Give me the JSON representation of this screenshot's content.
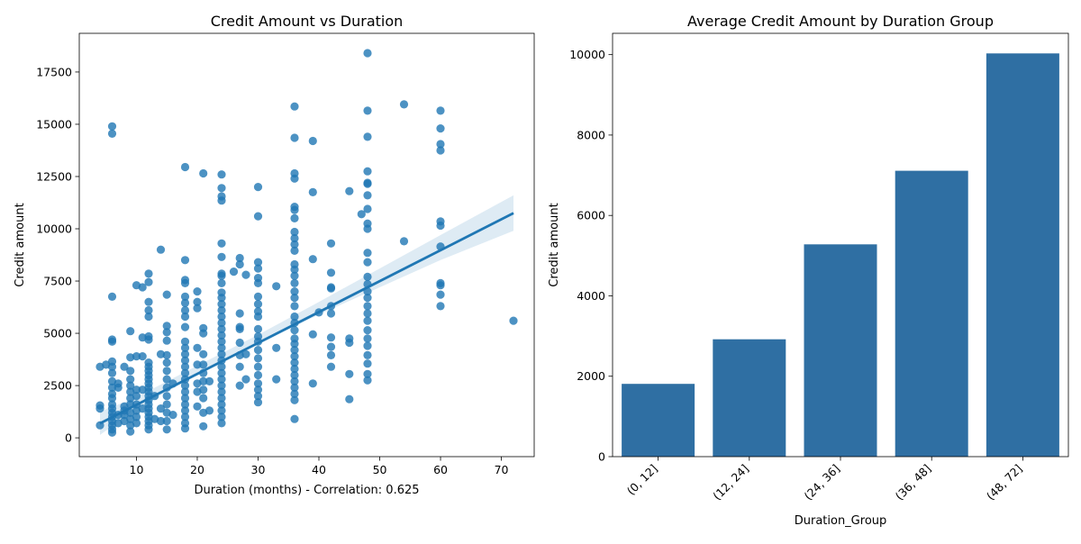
{
  "chart_data": [
    {
      "type": "scatter",
      "title": "Credit Amount vs Duration",
      "xlabel": "Duration (months) - Correlation: 0.625",
      "ylabel": "Credit amount",
      "xlim": [
        0.6,
        75.4
      ],
      "ylim": [
        -900,
        19350
      ],
      "xticks": [
        10,
        20,
        30,
        40,
        50,
        60,
        70
      ],
      "yticks": [
        0,
        2500,
        5000,
        7500,
        10000,
        12500,
        15000,
        17500
      ],
      "grid": false,
      "color": "#1f77b4",
      "points": [
        [
          4,
          600
        ],
        [
          4,
          1400
        ],
        [
          4,
          1550
        ],
        [
          4,
          3400
        ],
        [
          5,
          3500
        ],
        [
          6,
          250
        ],
        [
          6,
          400
        ],
        [
          6,
          600
        ],
        [
          6,
          800
        ],
        [
          6,
          1000
        ],
        [
          6,
          1200
        ],
        [
          6,
          1400
        ],
        [
          6,
          1600
        ],
        [
          6,
          1900
        ],
        [
          6,
          2100
        ],
        [
          6,
          2400
        ],
        [
          6,
          2700
        ],
        [
          6,
          3100
        ],
        [
          6,
          3400
        ],
        [
          6,
          3650
        ],
        [
          6,
          4600
        ],
        [
          6,
          4700
        ],
        [
          6,
          6750
        ],
        [
          6,
          14550
        ],
        [
          6,
          14900
        ],
        [
          7,
          700
        ],
        [
          7,
          1100
        ],
        [
          7,
          2400
        ],
        [
          7,
          2600
        ],
        [
          8,
          800
        ],
        [
          8,
          1100
        ],
        [
          8,
          1300
        ],
        [
          8,
          1500
        ],
        [
          8,
          3400
        ],
        [
          9,
          300
        ],
        [
          9,
          600
        ],
        [
          9,
          900
        ],
        [
          9,
          1200
        ],
        [
          9,
          1600
        ],
        [
          9,
          1900
        ],
        [
          9,
          2200
        ],
        [
          9,
          2500
        ],
        [
          9,
          2800
        ],
        [
          9,
          3200
        ],
        [
          9,
          3850
        ],
        [
          9,
          5100
        ],
        [
          10,
          700
        ],
        [
          10,
          1000
        ],
        [
          10,
          1300
        ],
        [
          10,
          1600
        ],
        [
          10,
          2000
        ],
        [
          10,
          2300
        ],
        [
          10,
          3900
        ],
        [
          10,
          7300
        ],
        [
          11,
          1400
        ],
        [
          11,
          2300
        ],
        [
          11,
          3900
        ],
        [
          11,
          4800
        ],
        [
          11,
          7200
        ],
        [
          12,
          400
        ],
        [
          12,
          600
        ],
        [
          12,
          800
        ],
        [
          12,
          1000
        ],
        [
          12,
          1200
        ],
        [
          12,
          1400
        ],
        [
          12,
          1600
        ],
        [
          12,
          1800
        ],
        [
          12,
          2000
        ],
        [
          12,
          2200
        ],
        [
          12,
          2400
        ],
        [
          12,
          2600
        ],
        [
          12,
          2800
        ],
        [
          12,
          3000
        ],
        [
          12,
          3200
        ],
        [
          12,
          3400
        ],
        [
          12,
          3600
        ],
        [
          12,
          4700
        ],
        [
          12,
          4850
        ],
        [
          12,
          5800
        ],
        [
          12,
          6100
        ],
        [
          12,
          6500
        ],
        [
          12,
          7450
        ],
        [
          12,
          7850
        ],
        [
          13,
          900
        ],
        [
          13,
          2000
        ],
        [
          14,
          800
        ],
        [
          14,
          1400
        ],
        [
          14,
          4000
        ],
        [
          14,
          9000
        ],
        [
          15,
          400
        ],
        [
          15,
          800
        ],
        [
          15,
          1200
        ],
        [
          15,
          1600
        ],
        [
          15,
          2000
        ],
        [
          15,
          2400
        ],
        [
          15,
          2800
        ],
        [
          15,
          3200
        ],
        [
          15,
          3600
        ],
        [
          15,
          3950
        ],
        [
          15,
          4650
        ],
        [
          15,
          5050
        ],
        [
          15,
          5350
        ],
        [
          15,
          6850
        ],
        [
          16,
          1100
        ],
        [
          16,
          2600
        ],
        [
          18,
          450
        ],
        [
          18,
          700
        ],
        [
          18,
          1000
        ],
        [
          18,
          1300
        ],
        [
          18,
          1600
        ],
        [
          18,
          1900
        ],
        [
          18,
          2200
        ],
        [
          18,
          2500
        ],
        [
          18,
          2800
        ],
        [
          18,
          3100
        ],
        [
          18,
          3400
        ],
        [
          18,
          3700
        ],
        [
          18,
          4000
        ],
        [
          18,
          4300
        ],
        [
          18,
          4600
        ],
        [
          18,
          5300
        ],
        [
          18,
          5800
        ],
        [
          18,
          6100
        ],
        [
          18,
          6450
        ],
        [
          18,
          6750
        ],
        [
          18,
          7400
        ],
        [
          18,
          7550
        ],
        [
          18,
          8500
        ],
        [
          18,
          12950
        ],
        [
          20,
          1500
        ],
        [
          20,
          2200
        ],
        [
          20,
          2600
        ],
        [
          20,
          3500
        ],
        [
          20,
          4300
        ],
        [
          20,
          6200
        ],
        [
          20,
          6500
        ],
        [
          20,
          7000
        ],
        [
          21,
          550
        ],
        [
          21,
          1200
        ],
        [
          21,
          1900
        ],
        [
          21,
          2300
        ],
        [
          21,
          2700
        ],
        [
          21,
          3100
        ],
        [
          21,
          3500
        ],
        [
          21,
          4000
        ],
        [
          21,
          5000
        ],
        [
          21,
          5250
        ],
        [
          21,
          12650
        ],
        [
          22,
          1300
        ],
        [
          22,
          2700
        ],
        [
          24,
          700
        ],
        [
          24,
          1000
        ],
        [
          24,
          1300
        ],
        [
          24,
          1600
        ],
        [
          24,
          1900
        ],
        [
          24,
          2200
        ],
        [
          24,
          2500
        ],
        [
          24,
          2800
        ],
        [
          24,
          3100
        ],
        [
          24,
          3400
        ],
        [
          24,
          3700
        ],
        [
          24,
          4000
        ],
        [
          24,
          4300
        ],
        [
          24,
          4600
        ],
        [
          24,
          4900
        ],
        [
          24,
          5200
        ],
        [
          24,
          5500
        ],
        [
          24,
          5800
        ],
        [
          24,
          6100
        ],
        [
          24,
          6400
        ],
        [
          24,
          6700
        ],
        [
          24,
          6950
        ],
        [
          24,
          7400
        ],
        [
          24,
          7750
        ],
        [
          24,
          7850
        ],
        [
          24,
          8650
        ],
        [
          24,
          9300
        ],
        [
          24,
          11350
        ],
        [
          24,
          11550
        ],
        [
          24,
          11950
        ],
        [
          24,
          12600
        ],
        [
          26,
          7950
        ],
        [
          27,
          2500
        ],
        [
          27,
          3400
        ],
        [
          27,
          3950
        ],
        [
          27,
          4550
        ],
        [
          27,
          5200
        ],
        [
          27,
          5300
        ],
        [
          27,
          5950
        ],
        [
          27,
          8300
        ],
        [
          27,
          8600
        ],
        [
          28,
          2800
        ],
        [
          28,
          4000
        ],
        [
          28,
          7800
        ],
        [
          30,
          1700
        ],
        [
          30,
          2000
        ],
        [
          30,
          2300
        ],
        [
          30,
          2600
        ],
        [
          30,
          3000
        ],
        [
          30,
          3400
        ],
        [
          30,
          3800
        ],
        [
          30,
          4200
        ],
        [
          30,
          4600
        ],
        [
          30,
          4850
        ],
        [
          30,
          5200
        ],
        [
          30,
          5800
        ],
        [
          30,
          6050
        ],
        [
          30,
          6400
        ],
        [
          30,
          6750
        ],
        [
          30,
          7400
        ],
        [
          30,
          7650
        ],
        [
          30,
          8100
        ],
        [
          30,
          8400
        ],
        [
          30,
          10600
        ],
        [
          30,
          12000
        ],
        [
          33,
          2800
        ],
        [
          33,
          4300
        ],
        [
          33,
          7250
        ],
        [
          36,
          900
        ],
        [
          36,
          1800
        ],
        [
          36,
          2100
        ],
        [
          36,
          2400
        ],
        [
          36,
          2700
        ],
        [
          36,
          3000
        ],
        [
          36,
          3300
        ],
        [
          36,
          3600
        ],
        [
          36,
          3900
        ],
        [
          36,
          4200
        ],
        [
          36,
          4500
        ],
        [
          36,
          4750
        ],
        [
          36,
          5150
        ],
        [
          36,
          5500
        ],
        [
          36,
          5800
        ],
        [
          36,
          6300
        ],
        [
          36,
          6700
        ],
        [
          36,
          7000
        ],
        [
          36,
          7400
        ],
        [
          36,
          7750
        ],
        [
          36,
          8050
        ],
        [
          36,
          8300
        ],
        [
          36,
          8950
        ],
        [
          36,
          9250
        ],
        [
          36,
          9550
        ],
        [
          36,
          9850
        ],
        [
          36,
          10500
        ],
        [
          36,
          10900
        ],
        [
          36,
          11050
        ],
        [
          36,
          12400
        ],
        [
          36,
          12650
        ],
        [
          36,
          14350
        ],
        [
          36,
          15850
        ],
        [
          39,
          2600
        ],
        [
          39,
          4950
        ],
        [
          39,
          8550
        ],
        [
          39,
          11750
        ],
        [
          39,
          14200
        ],
        [
          40,
          6000
        ],
        [
          42,
          3400
        ],
        [
          42,
          3950
        ],
        [
          42,
          4350
        ],
        [
          42,
          4800
        ],
        [
          42,
          5950
        ],
        [
          42,
          6300
        ],
        [
          42,
          7150
        ],
        [
          42,
          7200
        ],
        [
          42,
          7900
        ],
        [
          42,
          9300
        ],
        [
          45,
          1850
        ],
        [
          45,
          3050
        ],
        [
          45,
          4550
        ],
        [
          45,
          4750
        ],
        [
          45,
          11800
        ],
        [
          47,
          10700
        ],
        [
          48,
          2750
        ],
        [
          48,
          3050
        ],
        [
          48,
          3550
        ],
        [
          48,
          3950
        ],
        [
          48,
          4400
        ],
        [
          48,
          4750
        ],
        [
          48,
          5150
        ],
        [
          48,
          5600
        ],
        [
          48,
          5950
        ],
        [
          48,
          6300
        ],
        [
          48,
          6700
        ],
        [
          48,
          7000
        ],
        [
          48,
          7350
        ],
        [
          48,
          7700
        ],
        [
          48,
          8400
        ],
        [
          48,
          8850
        ],
        [
          48,
          10000
        ],
        [
          48,
          10250
        ],
        [
          48,
          10950
        ],
        [
          48,
          11600
        ],
        [
          48,
          12150
        ],
        [
          48,
          12200
        ],
        [
          48,
          12750
        ],
        [
          48,
          14400
        ],
        [
          48,
          15650
        ],
        [
          48,
          18400
        ],
        [
          54,
          9400
        ],
        [
          54,
          15950
        ],
        [
          60,
          6300
        ],
        [
          60,
          6850
        ],
        [
          60,
          7300
        ],
        [
          60,
          7400
        ],
        [
          60,
          9150
        ],
        [
          60,
          10150
        ],
        [
          60,
          10350
        ],
        [
          60,
          13750
        ],
        [
          60,
          14050
        ],
        [
          60,
          14800
        ],
        [
          60,
          15650
        ],
        [
          72,
          5600
        ]
      ],
      "regression": {
        "x_start": 4,
        "y_start": 690,
        "x_end": 72,
        "y_end": 10750
      },
      "confidence_band": [
        [
          4,
          1250,
          140
        ],
        [
          10,
          1950,
          1400
        ],
        [
          20,
          3450,
          3000
        ],
        [
          30,
          4930,
          4500
        ],
        [
          40,
          6500,
          5900
        ],
        [
          50,
          8100,
          7200
        ],
        [
          60,
          9700,
          8500
        ],
        [
          72,
          11600,
          9900
        ]
      ]
    },
    {
      "type": "bar",
      "title": "Average Credit Amount by Duration Group",
      "xlabel": "Duration_Group",
      "ylabel": "Credit amount",
      "categories": [
        "(0, 12]",
        "(12, 24]",
        "(24, 36]",
        "(36, 48]",
        "(48, 72]"
      ],
      "values": [
        1810,
        2920,
        5280,
        7110,
        10030
      ],
      "ylim": [
        0,
        10530
      ],
      "yticks": [
        0,
        2000,
        4000,
        6000,
        8000,
        10000
      ],
      "grid": false,
      "color": "#2f6fa3"
    }
  ]
}
